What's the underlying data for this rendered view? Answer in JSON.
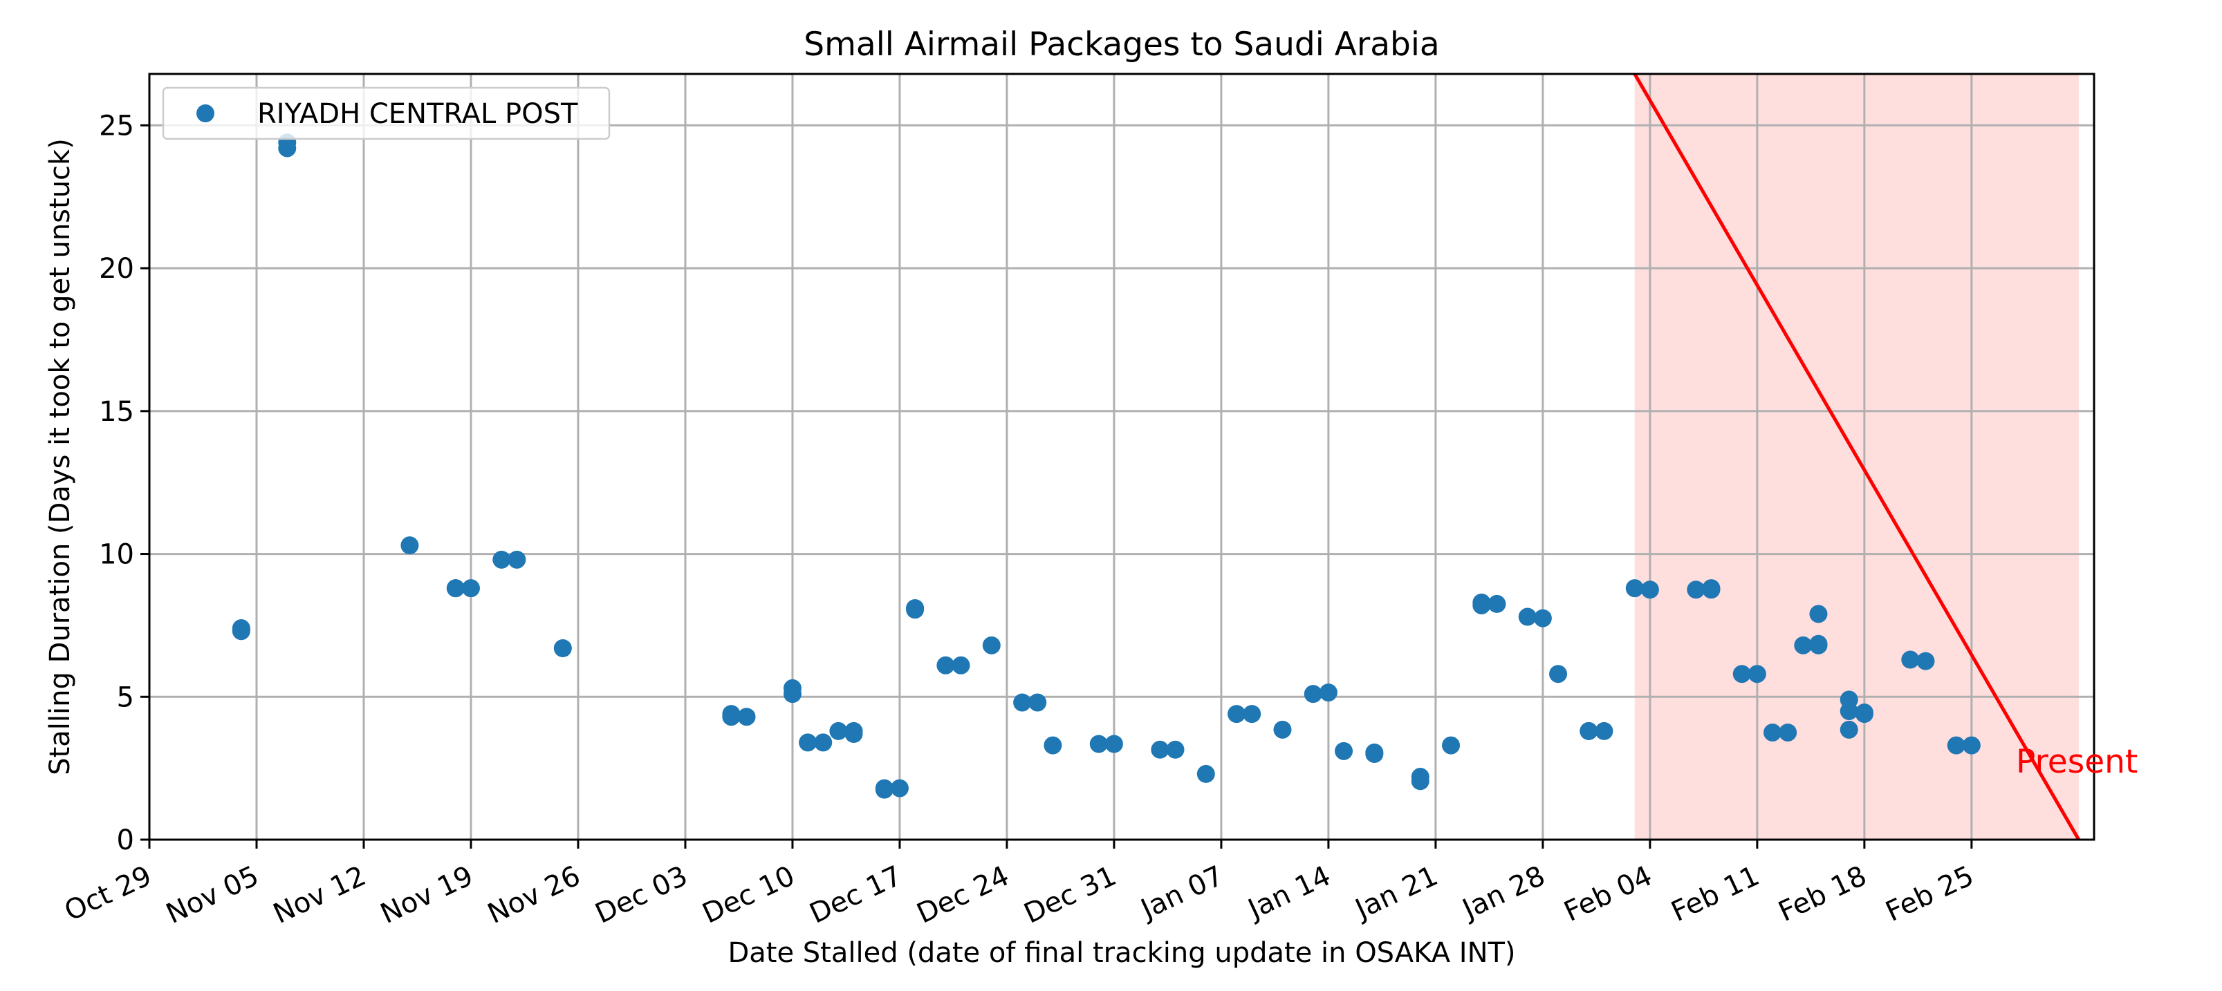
{
  "chart_data": {
    "type": "scatter",
    "title": "Small Airmail Packages to Saudi Arabia",
    "xlabel": "Date Stalled (date of final tracking update in OSAKA INT)",
    "ylabel": "Stalling Duration (Days it took to get unstuck)",
    "xlim": [
      "Oct 29",
      "Mar 04"
    ],
    "ylim": [
      0,
      26.8
    ],
    "x_ticks": [
      "Oct 29",
      "Nov 05",
      "Nov 12",
      "Nov 19",
      "Nov 26",
      "Dec 03",
      "Dec 10",
      "Dec 17",
      "Dec 24",
      "Dec 31",
      "Jan 07",
      "Jan 14",
      "Jan 21",
      "Jan 28",
      "Feb 04",
      "Feb 11",
      "Feb 18",
      "Feb 25"
    ],
    "y_ticks": [
      0,
      5,
      10,
      15,
      20,
      25
    ],
    "grid": true,
    "legend_position": "top-left",
    "colors": {
      "series": "#1f77b4",
      "line": "#ff0000",
      "shade": "#ffdede",
      "grid": "#b0b0b0"
    },
    "series": [
      {
        "name": "RIYADH CENTRAL POST",
        "points": [
          {
            "x": "Nov 04",
            "y": 7.3
          },
          {
            "x": "Nov 04",
            "y": 7.4
          },
          {
            "x": "Nov 04",
            "y": 7.35
          },
          {
            "x": "Nov 07",
            "y": 24.2
          },
          {
            "x": "Nov 07",
            "y": 24.4
          },
          {
            "x": "Nov 15",
            "y": 10.3
          },
          {
            "x": "Nov 18",
            "y": 8.8
          },
          {
            "x": "Nov 18",
            "y": 8.8
          },
          {
            "x": "Nov 19",
            "y": 8.8
          },
          {
            "x": "Nov 21",
            "y": 9.8
          },
          {
            "x": "Nov 22",
            "y": 9.8
          },
          {
            "x": "Nov 25",
            "y": 6.7
          },
          {
            "x": "Dec 06",
            "y": 4.3
          },
          {
            "x": "Dec 06",
            "y": 4.4
          },
          {
            "x": "Dec 07",
            "y": 4.3
          },
          {
            "x": "Dec 10",
            "y": 5.3
          },
          {
            "x": "Dec 10",
            "y": 5.1
          },
          {
            "x": "Dec 11",
            "y": 3.4
          },
          {
            "x": "Dec 12",
            "y": 3.4
          },
          {
            "x": "Dec 13",
            "y": 3.8
          },
          {
            "x": "Dec 14",
            "y": 3.8
          },
          {
            "x": "Dec 14",
            "y": 3.7
          },
          {
            "x": "Dec 16",
            "y": 1.8
          },
          {
            "x": "Dec 16",
            "y": 1.75
          },
          {
            "x": "Dec 17",
            "y": 1.8
          },
          {
            "x": "Dec 18",
            "y": 8.1
          },
          {
            "x": "Dec 18",
            "y": 8.1
          },
          {
            "x": "Dec 18",
            "y": 8.05
          },
          {
            "x": "Dec 20",
            "y": 6.1
          },
          {
            "x": "Dec 21",
            "y": 6.1
          },
          {
            "x": "Dec 23",
            "y": 6.8
          },
          {
            "x": "Dec 25",
            "y": 4.8
          },
          {
            "x": "Dec 26",
            "y": 4.8
          },
          {
            "x": "Dec 27",
            "y": 3.3
          },
          {
            "x": "Dec 30",
            "y": 3.35
          },
          {
            "x": "Dec 31",
            "y": 3.35
          },
          {
            "x": "Jan 03",
            "y": 3.15
          },
          {
            "x": "Jan 04",
            "y": 3.15
          },
          {
            "x": "Jan 06",
            "y": 2.3
          },
          {
            "x": "Jan 08",
            "y": 4.4
          },
          {
            "x": "Jan 09",
            "y": 4.4
          },
          {
            "x": "Jan 11",
            "y": 3.85
          },
          {
            "x": "Jan 13",
            "y": 5.1
          },
          {
            "x": "Jan 14",
            "y": 5.15
          },
          {
            "x": "Jan 15",
            "y": 3.1
          },
          {
            "x": "Jan 17",
            "y": 3.05
          },
          {
            "x": "Jan 17",
            "y": 3.0
          },
          {
            "x": "Jan 20",
            "y": 2.2
          },
          {
            "x": "Jan 20",
            "y": 2.05
          },
          {
            "x": "Jan 22",
            "y": 3.3
          },
          {
            "x": "Jan 24",
            "y": 8.3
          },
          {
            "x": "Jan 24",
            "y": 8.2
          },
          {
            "x": "Jan 25",
            "y": 8.25
          },
          {
            "x": "Jan 27",
            "y": 7.8
          },
          {
            "x": "Jan 28",
            "y": 7.75
          },
          {
            "x": "Jan 29",
            "y": 5.8
          },
          {
            "x": "Jan 31",
            "y": 3.8
          },
          {
            "x": "Jan 31",
            "y": 3.8
          },
          {
            "x": "Feb 01",
            "y": 3.8
          },
          {
            "x": "Feb 03",
            "y": 8.8
          },
          {
            "x": "Feb 04",
            "y": 8.75
          },
          {
            "x": "Feb 07",
            "y": 8.75
          },
          {
            "x": "Feb 08",
            "y": 8.75
          },
          {
            "x": "Feb 08",
            "y": 8.8
          },
          {
            "x": "Feb 10",
            "y": 5.8
          },
          {
            "x": "Feb 11",
            "y": 5.8
          },
          {
            "x": "Feb 12",
            "y": 3.75
          },
          {
            "x": "Feb 13",
            "y": 3.75
          },
          {
            "x": "Feb 14",
            "y": 6.8
          },
          {
            "x": "Feb 15",
            "y": 6.8
          },
          {
            "x": "Feb 15",
            "y": 6.85
          },
          {
            "x": "Feb 15",
            "y": 7.9
          },
          {
            "x": "Feb 17",
            "y": 3.85
          },
          {
            "x": "Feb 17",
            "y": 4.5
          },
          {
            "x": "Feb 17",
            "y": 4.9
          },
          {
            "x": "Feb 18",
            "y": 4.45
          },
          {
            "x": "Feb 18",
            "y": 4.4
          },
          {
            "x": "Feb 21",
            "y": 6.3
          },
          {
            "x": "Feb 22",
            "y": 6.25
          },
          {
            "x": "Feb 24",
            "y": 3.3
          },
          {
            "x": "Feb 25",
            "y": 3.3
          }
        ]
      }
    ],
    "present_line": {
      "label": "Present",
      "from": {
        "x": "Feb 03",
        "y": 26.8
      },
      "to": {
        "x": "Mar 03",
        "y": 0
      }
    },
    "shaded_region": {
      "x_from": "Feb 03",
      "x_to": "Mar 03"
    }
  }
}
